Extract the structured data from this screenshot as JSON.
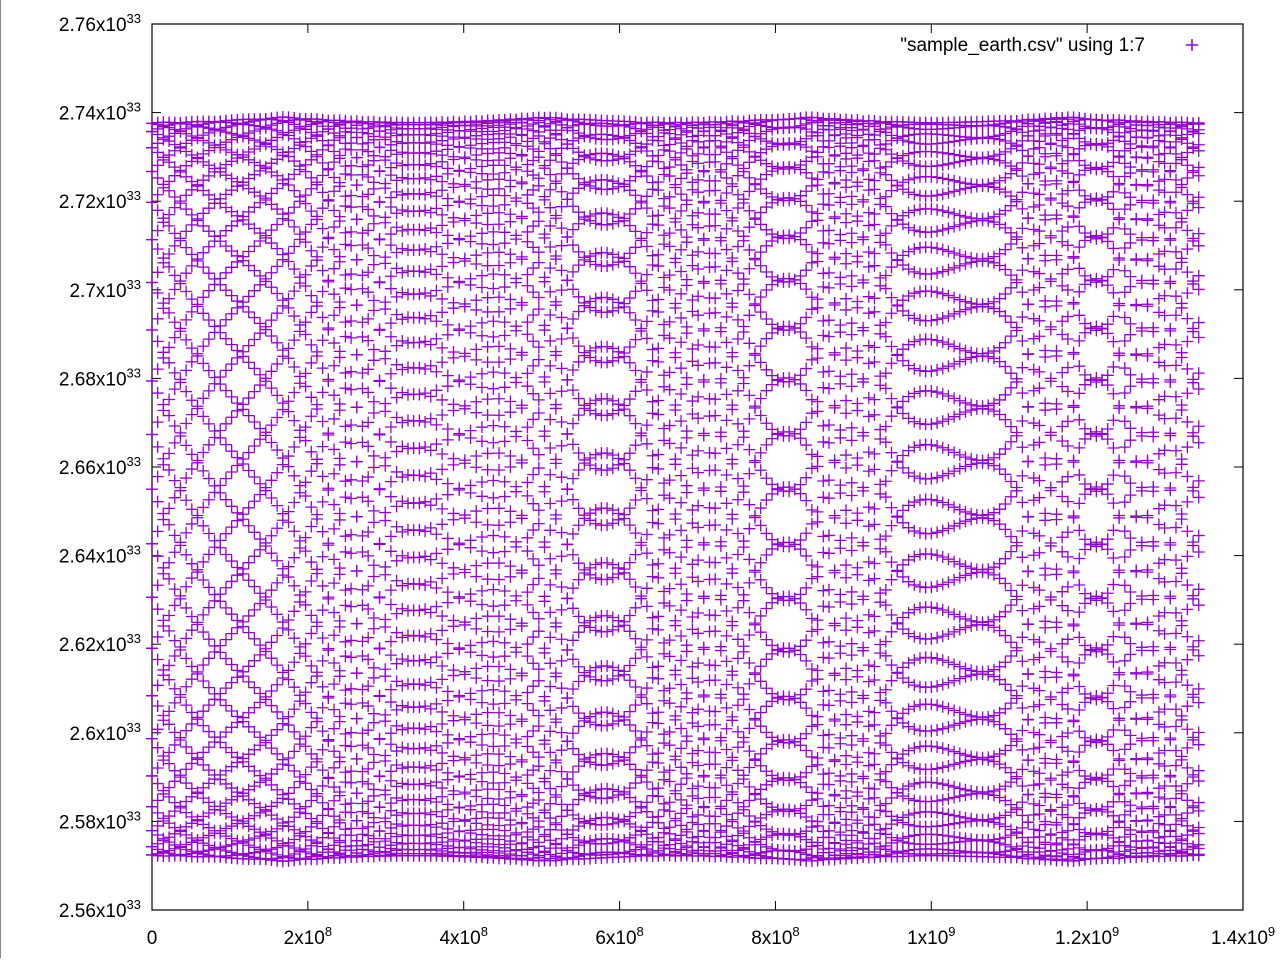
{
  "chart_data": {
    "type": "scatter",
    "title": "",
    "xlabel": "",
    "ylabel": "",
    "xlim": [
      0,
      1400000000
    ],
    "ylim": [
      2.56e+33,
      2.76e+33
    ],
    "grid": false,
    "legend_placement": "top-right",
    "marker": "plus",
    "series_color": "#9400d3",
    "x_ticks": [
      {
        "value": 0,
        "base": "0",
        "exp": ""
      },
      {
        "value": 200000000,
        "base": "2x10",
        "exp": "8"
      },
      {
        "value": 400000000,
        "base": "4x10",
        "exp": "8"
      },
      {
        "value": 600000000,
        "base": "6x10",
        "exp": "8"
      },
      {
        "value": 800000000,
        "base": "8x10",
        "exp": "8"
      },
      {
        "value": 1000000000,
        "base": "1x10",
        "exp": "9"
      },
      {
        "value": 1200000000,
        "base": "1.2x10",
        "exp": "9"
      },
      {
        "value": 1400000000,
        "base": "1.4x10",
        "exp": "9"
      }
    ],
    "y_ticks": [
      {
        "value": 2.56e+33,
        "base": "2.56x10",
        "exp": "33"
      },
      {
        "value": 2.58e+33,
        "base": "2.58x10",
        "exp": "33"
      },
      {
        "value": 2.6e+33,
        "base": "2.6x10",
        "exp": "33"
      },
      {
        "value": 2.62e+33,
        "base": "2.62x10",
        "exp": "33"
      },
      {
        "value": 2.64e+33,
        "base": "2.64x10",
        "exp": "33"
      },
      {
        "value": 2.66e+33,
        "base": "2.66x10",
        "exp": "33"
      },
      {
        "value": 2.68e+33,
        "base": "2.68x10",
        "exp": "33"
      },
      {
        "value": 2.7e+33,
        "base": "2.7x10",
        "exp": "33"
      },
      {
        "value": 2.72e+33,
        "base": "2.72x10",
        "exp": "33"
      },
      {
        "value": 2.74e+33,
        "base": "2.74x10",
        "exp": "33"
      },
      {
        "value": 2.76e+33,
        "base": "2.76x10",
        "exp": "33"
      }
    ],
    "series": [
      {
        "name": "\"sample_earth.csv\" using 1:7",
        "sampling": {
          "x_start": 0,
          "x_end": 1350000000,
          "x_step": 7300000,
          "y_mean": 2.655e+33,
          "y_amplitude": 8.6e+31,
          "envelope_base": 2e+30,
          "envelope_amplitude": 1.2e+30,
          "envelope_period": 336000000,
          "rate_modulation": 0.11,
          "rate_period": 672000000,
          "angular_rate": 0.0157
        },
        "points": []
      }
    ]
  }
}
